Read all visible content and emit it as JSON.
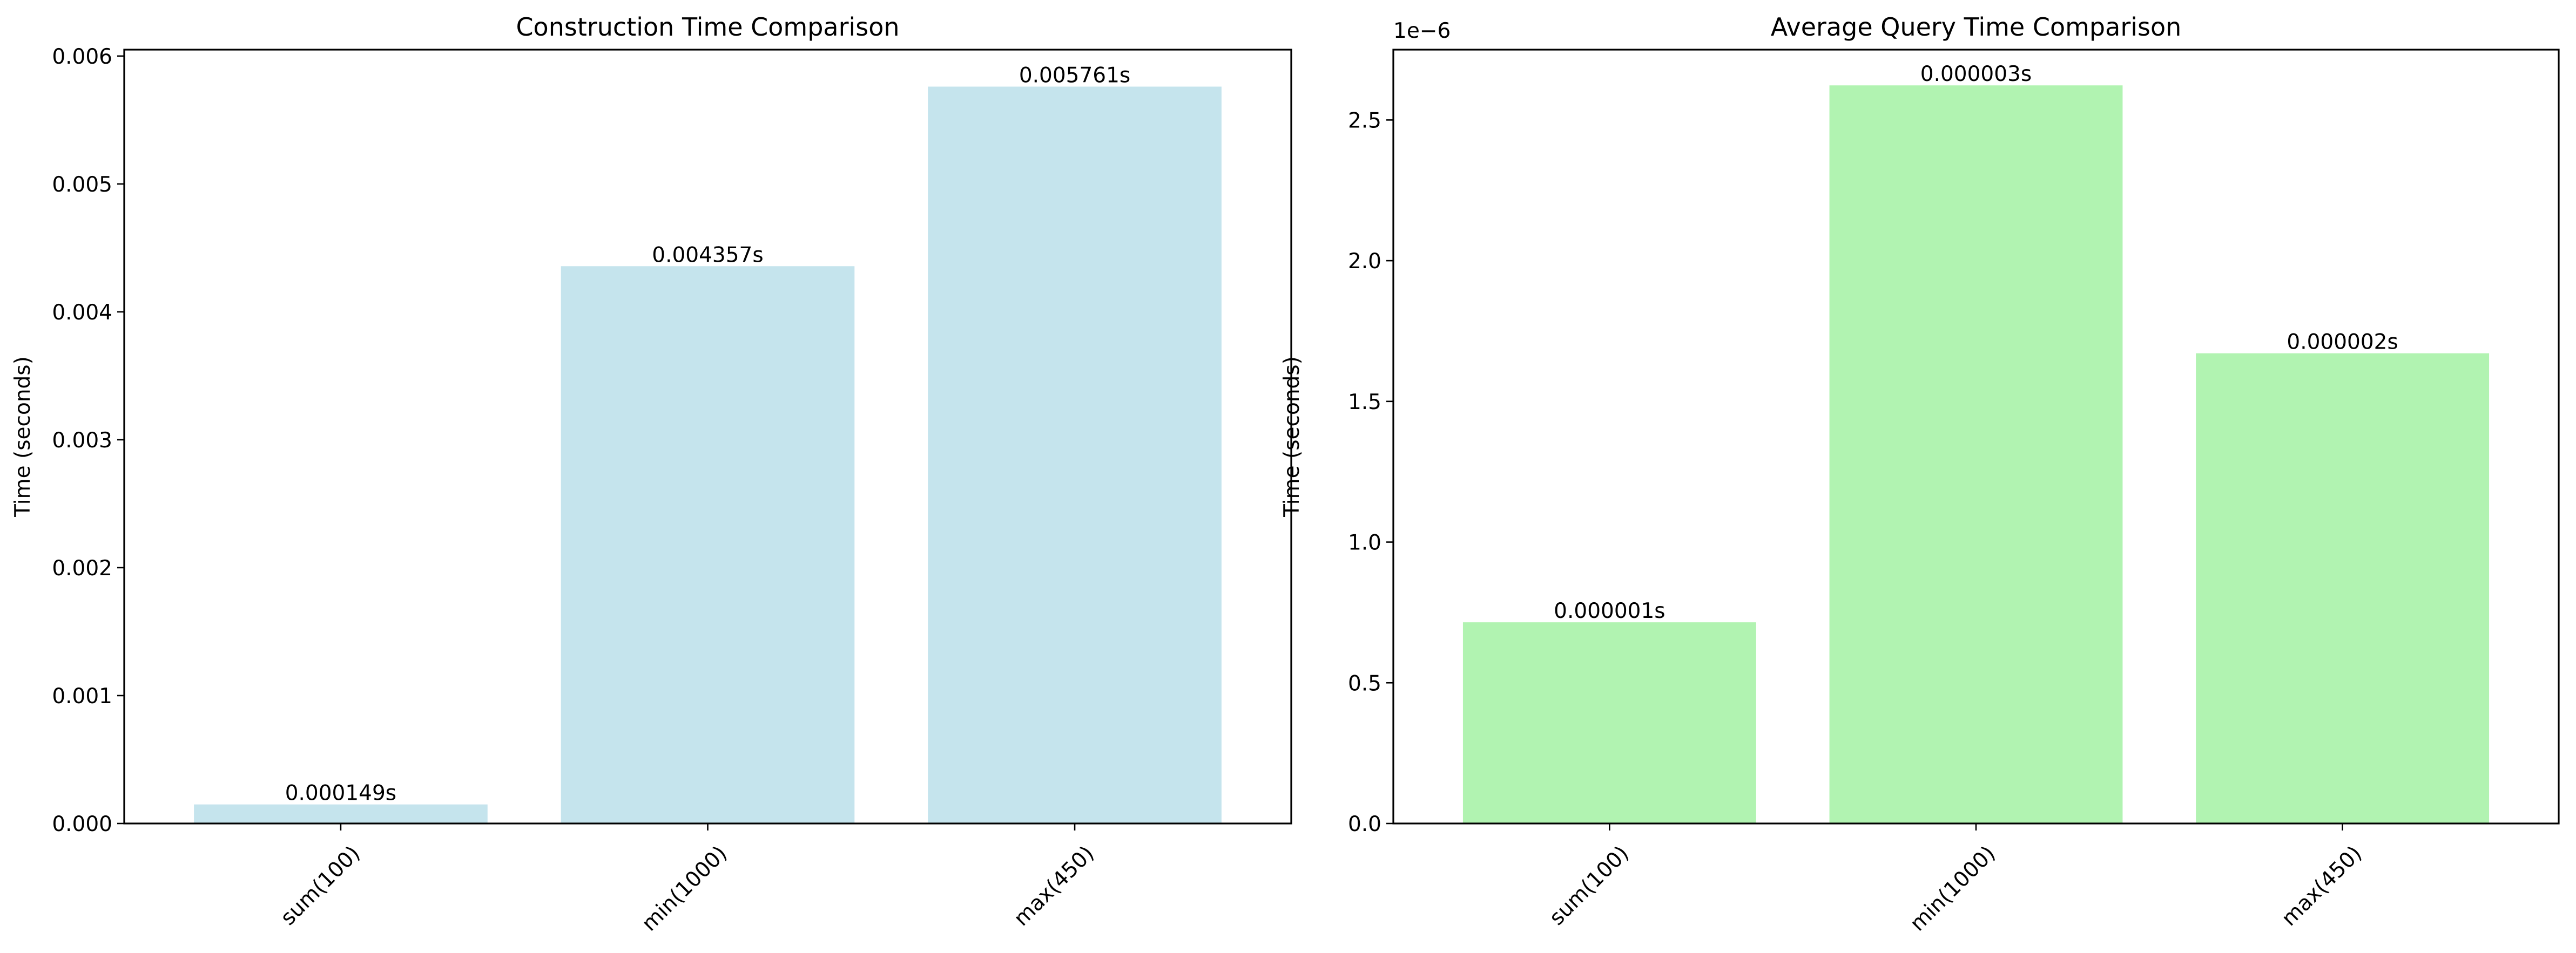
{
  "chart_data": [
    {
      "type": "bar",
      "title": "Construction Time Comparison",
      "xlabel": "",
      "ylabel": "Time (seconds)",
      "categories": [
        "sum(100)",
        "min(1000)",
        "max(450)"
      ],
      "values": [
        0.000149,
        0.004357,
        0.005761
      ],
      "value_labels": [
        "0.000149s",
        "0.004357s",
        "0.005761s"
      ],
      "ylim": [
        0,
        0.00605
      ],
      "yticks": [
        0,
        0.001,
        0.002,
        0.003,
        0.004,
        0.005,
        0.006
      ],
      "ytick_labels": [
        "0.000",
        "0.001",
        "0.002",
        "0.003",
        "0.004",
        "0.005",
        "0.006"
      ],
      "offset_label": "",
      "bar_color": "#add8e6",
      "bar_opacity": 0.7,
      "xtick_rotation": 45,
      "grid": false,
      "legend": false
    },
    {
      "type": "bar",
      "title": "Average Query Time Comparison",
      "xlabel": "",
      "ylabel": "Time (seconds)",
      "categories": [
        "sum(100)",
        "min(1000)",
        "max(450)"
      ],
      "values": [
        7.15e-07,
        2.623e-06,
        1.671e-06
      ],
      "value_labels": [
        "0.000001s",
        "0.000003s",
        "0.000002s"
      ],
      "ylim": [
        0,
        2.75e-06
      ],
      "yticks": [
        0,
        5e-07,
        1e-06,
        1.5e-06,
        2e-06,
        2.5e-06
      ],
      "ytick_labels": [
        "0.0",
        "0.5",
        "1.0",
        "1.5",
        "2.0",
        "2.5"
      ],
      "offset_label": "1e−6",
      "bar_color": "#90ee90",
      "bar_opacity": 0.7,
      "xtick_rotation": 45,
      "grid": false,
      "legend": false
    }
  ]
}
